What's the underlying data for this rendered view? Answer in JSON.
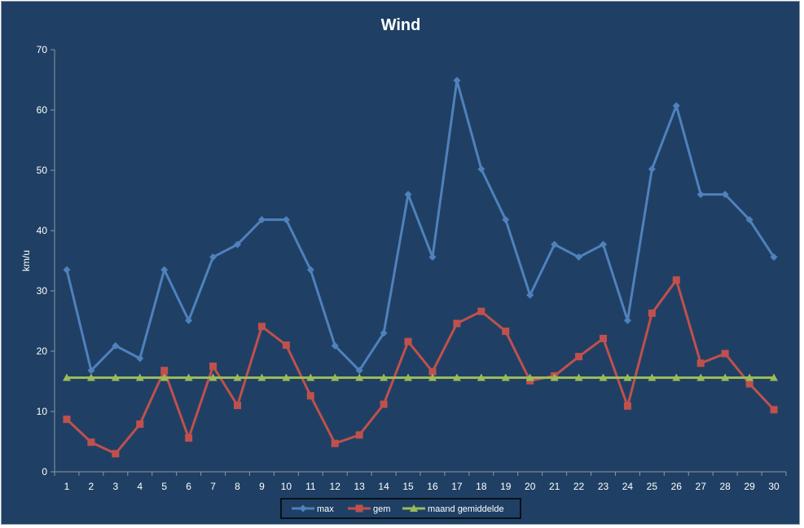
{
  "chart_data": {
    "type": "line",
    "title": "Wind",
    "xlabel": "",
    "ylabel": "km/u",
    "ylim": [
      0,
      70
    ],
    "yticks": [
      0,
      10,
      20,
      30,
      40,
      50,
      60,
      70
    ],
    "categories": [
      "1",
      "2",
      "3",
      "4",
      "5",
      "6",
      "7",
      "8",
      "9",
      "10",
      "11",
      "12",
      "13",
      "14",
      "15",
      "16",
      "17",
      "18",
      "19",
      "20",
      "21",
      "22",
      "23",
      "24",
      "25",
      "26",
      "27",
      "28",
      "29",
      "30"
    ],
    "grid": false,
    "legend_position": "bottom",
    "series": [
      {
        "name": "max",
        "color": "#4f81bd",
        "marker": "diamond",
        "values": [
          33.5,
          16.8,
          20.9,
          18.8,
          33.5,
          25.1,
          35.6,
          37.7,
          41.8,
          41.8,
          33.5,
          20.9,
          16.8,
          23.0,
          46.0,
          35.6,
          64.9,
          50.2,
          41.8,
          29.3,
          37.7,
          35.6,
          37.7,
          25.1,
          50.2,
          60.7,
          46.0,
          46.0,
          41.8,
          35.6
        ]
      },
      {
        "name": "gem",
        "color": "#c0504d",
        "marker": "square",
        "values": [
          8.7,
          4.9,
          3.0,
          7.9,
          16.8,
          5.6,
          17.5,
          11.0,
          24.1,
          21.0,
          12.6,
          4.7,
          6.1,
          11.2,
          21.6,
          16.6,
          24.6,
          26.6,
          23.3,
          15.1,
          15.9,
          19.1,
          22.1,
          10.9,
          26.3,
          31.8,
          18.0,
          19.6,
          14.6,
          10.3
        ]
      },
      {
        "name": "maand gemiddelde",
        "color": "#9bbb59",
        "marker": "triangle",
        "values": [
          15.6,
          15.6,
          15.6,
          15.6,
          15.6,
          15.6,
          15.6,
          15.6,
          15.6,
          15.6,
          15.6,
          15.6,
          15.6,
          15.6,
          15.6,
          15.6,
          15.6,
          15.6,
          15.6,
          15.6,
          15.6,
          15.6,
          15.6,
          15.6,
          15.6,
          15.6,
          15.6,
          15.6,
          15.6,
          15.6
        ]
      }
    ]
  }
}
